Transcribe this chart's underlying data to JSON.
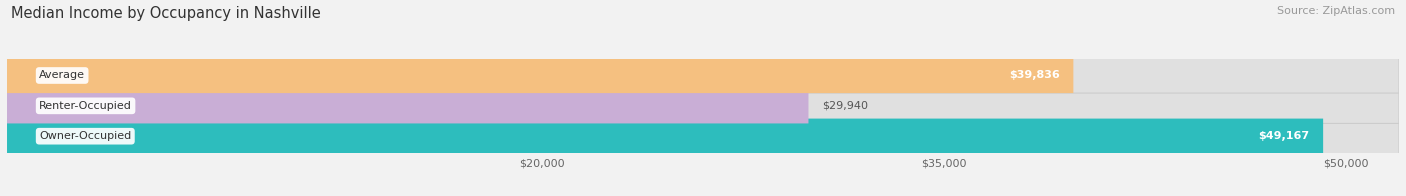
{
  "title": "Median Income by Occupancy in Nashville",
  "source": "Source: ZipAtlas.com",
  "categories": [
    "Owner-Occupied",
    "Renter-Occupied",
    "Average"
  ],
  "values": [
    49167,
    29940,
    39836
  ],
  "bar_colors": [
    "#2dbdbd",
    "#c9aed6",
    "#f5c080"
  ],
  "label_values": [
    "$49,167",
    "$29,940",
    "$39,836"
  ],
  "label_inside": [
    true,
    false,
    true
  ],
  "xlim": [
    0,
    52000
  ],
  "xticks": [
    20000,
    35000,
    50000
  ],
  "xtick_labels": [
    "$20,000",
    "$35,000",
    "$50,000"
  ],
  "background_color": "#f2f2f2",
  "bar_bg_color": "#e0e0e0",
  "title_fontsize": 10.5,
  "source_fontsize": 8,
  "bar_label_fontsize": 8,
  "cat_label_fontsize": 8,
  "tick_fontsize": 8,
  "bar_height": 0.58,
  "figsize": [
    14.06,
    1.96
  ]
}
